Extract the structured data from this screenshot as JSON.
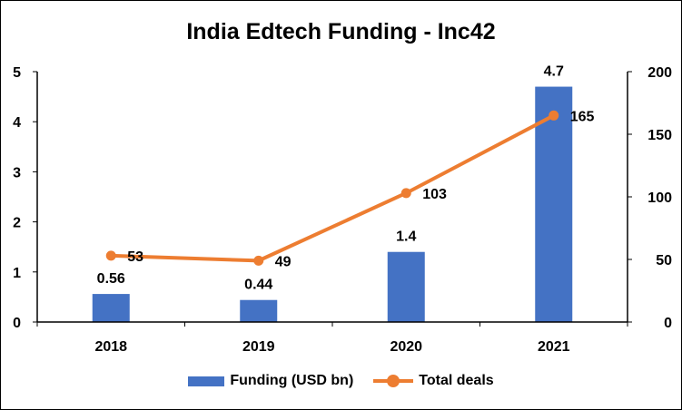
{
  "chart_data": {
    "type": "bar",
    "title": "India Edtech Funding - Inc42",
    "categories": [
      "2018",
      "2019",
      "2020",
      "2021"
    ],
    "y_left": {
      "ylim": [
        0,
        5
      ],
      "ticks": [
        "0",
        "1",
        "2",
        "3",
        "4",
        "5"
      ]
    },
    "y_right": {
      "ylim": [
        0,
        200
      ],
      "ticks": [
        "0",
        "50",
        "100",
        "150",
        "200"
      ]
    },
    "series": [
      {
        "name": "Funding (USD bn)",
        "type": "bar",
        "axis": "left",
        "values": [
          0.56,
          0.44,
          1.4,
          4.7
        ],
        "labels": [
          "0.56",
          "0.44",
          "1.4",
          "4.7"
        ],
        "color": "#4472c4"
      },
      {
        "name": "Total deals",
        "type": "line",
        "axis": "right",
        "values": [
          53,
          49,
          103,
          165
        ],
        "labels": [
          "53",
          "49",
          "103",
          "165"
        ],
        "color": "#ed7d31"
      }
    ],
    "grid": false,
    "legend_position": "bottom"
  }
}
